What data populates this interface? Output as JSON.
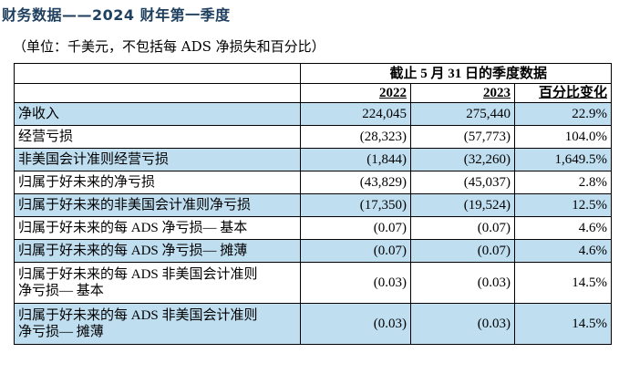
{
  "title": "财务数据——2024 财年第一季度",
  "unit_note": "（单位：千美元，不包括每 ADS 净损失和百分比）",
  "table": {
    "period_header": "截止 5 月 31 日的季度数据",
    "columns": [
      "2022",
      "2023",
      "百分比变化"
    ],
    "rows": [
      {
        "label": "净收入",
        "v2022": "224,045",
        "v2023": "275,440",
        "change": "22.9%",
        "shaded": true
      },
      {
        "label": "经营亏损",
        "v2022": "(28,323)",
        "v2023": "(57,773)",
        "change": "104.0%",
        "shaded": false
      },
      {
        "label": "非美国会计准则经营亏损",
        "v2022": "(1,844)",
        "v2023": "(32,260)",
        "change": "1,649.5%",
        "shaded": true
      },
      {
        "label": "归属于好未来的净亏损",
        "v2022": "(43,829)",
        "v2023": "(45,037)",
        "change": "2.8%",
        "shaded": false
      },
      {
        "label": "归属于好未来的非美国会计准则净亏损",
        "v2022": "(17,350)",
        "v2023": "(19,524)",
        "change": "12.5%",
        "shaded": true
      },
      {
        "label": "归属于好未来的每 ADS 净亏损— 基本",
        "v2022": "(0.07)",
        "v2023": "(0.07)",
        "change": "4.6%",
        "shaded": false
      },
      {
        "label": "归属于好未来的每 ADS 净亏损— 摊薄",
        "v2022": "(0.07)",
        "v2023": "(0.07)",
        "change": "4.6%",
        "shaded": true
      },
      {
        "label_line1": "归属于好未来的每 ADS 非美国会计准则",
        "label_line2": "净亏损— 基本",
        "v2022": "(0.03)",
        "v2023": "(0.03)",
        "change": "14.5%",
        "shaded": false
      },
      {
        "label_line1": "归属于好未来的每 ADS 非美国会计准则",
        "label_line2": "净亏损— 摊薄",
        "v2022": "(0.03)",
        "v2023": "(0.03)",
        "change": "14.5%",
        "shaded": true
      }
    ]
  }
}
